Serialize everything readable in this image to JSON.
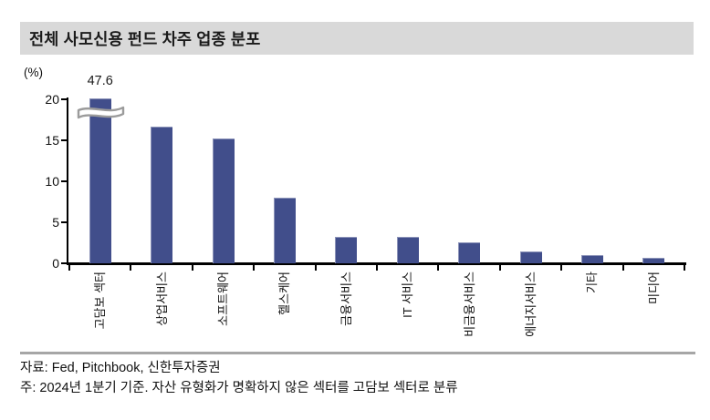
{
  "title": "전체 사모신용 펀드 차주 업종 분포",
  "chart_data": {
    "type": "bar",
    "title": "전체 사모신용 펀드 차주 업종 분포",
    "unit_label": "(%)",
    "categories": [
      "고담보 섹터",
      "상업서비스",
      "소프트웨어",
      "헬스케어",
      "금융서비스",
      "IT 서비스",
      "비금융서비스",
      "에너지서비스",
      "기타",
      "미디어"
    ],
    "values": [
      47.6,
      16.7,
      15.2,
      8.0,
      3.2,
      3.2,
      2.6,
      1.5,
      1.0,
      0.7
    ],
    "data_labels": [
      "47.6",
      "",
      "",
      "",
      "",
      "",
      "",
      "",
      "",
      ""
    ],
    "ylim": [
      0,
      20
    ],
    "yticks": [
      0,
      5,
      10,
      15,
      20
    ],
    "axis_break": {
      "category_index": 0,
      "clip_value": 20,
      "note": "first bar truncated at 20 with break symbol, true value 47.6"
    },
    "bar_color": "#414e8b",
    "axis_color": "#000000",
    "grid": false,
    "legend": false
  },
  "footer": {
    "source": "자료: Fed, Pitchbook, 신한투자증권",
    "note": "주: 2024년 1분기 기준. 자산 유형화가 명확하지 않은 섹터를 고담보 섹터로 분류"
  },
  "colors": {
    "title_bg": "#d9d9d9",
    "bar": "#414e8b",
    "divider": "#a6a6a6",
    "text": "#111111"
  }
}
